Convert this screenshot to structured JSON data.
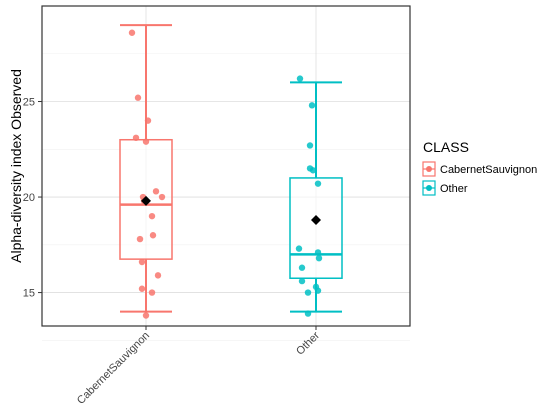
{
  "chart_data": {
    "type": "box",
    "ylabel": "Alpha-diversity index Observed",
    "xlabel": "",
    "categories": [
      "CabernetSauvignon",
      "Other"
    ],
    "yticks": [
      15,
      20,
      25
    ],
    "ylim": [
      13.25,
      30
    ],
    "grid": true,
    "legend": {
      "title": "CLASS",
      "placement": "right",
      "entries": [
        "CabernetSauvignon",
        "Other"
      ]
    },
    "colors": {
      "CabernetSauvignon": "#F8766D",
      "Other": "#00BFC4"
    },
    "boxes": [
      {
        "category": "CabernetSauvignon",
        "min": 14.0,
        "q1": 16.75,
        "median": 19.6,
        "q3": 23.0,
        "max": 29.0,
        "mean": 19.8,
        "points": [
          28.6,
          25.2,
          24.0,
          23.1,
          22.9,
          20.3,
          20.0,
          20.0,
          19.8,
          19.0,
          18.0,
          17.8,
          16.6,
          15.9,
          15.2,
          15.0,
          13.8
        ]
      },
      {
        "category": "Other",
        "min": 14.0,
        "q1": 15.75,
        "median": 17.0,
        "q3": 21.0,
        "max": 26.0,
        "mean": 18.8,
        "points": [
          26.2,
          24.8,
          22.7,
          21.5,
          21.4,
          20.7,
          17.3,
          17.1,
          16.8,
          16.3,
          15.6,
          15.3,
          15.1,
          15.0,
          13.9
        ]
      }
    ]
  }
}
